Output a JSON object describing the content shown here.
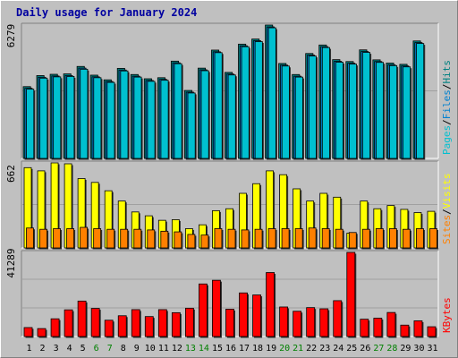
{
  "title": "Daily usage for January 2024",
  "colors": {
    "background": "#c0c0c0",
    "plot_bg": "#c0c0c0",
    "grid": "#a0a0a0",
    "pages": "#00c0d0",
    "files": "#0080d0",
    "hits": "#008080",
    "visits": "#ffff00",
    "sites": "#ff8000",
    "kbytes": "#ff0000",
    "weekday_label": "#000000",
    "weekend_label": "#008000"
  },
  "chart_data": [
    {
      "type": "bar",
      "panel": "hits_files_pages",
      "max_label": "6279",
      "legend": [
        "Pages",
        "/",
        "Files",
        "/",
        "Hits"
      ],
      "categories": [
        "1",
        "2",
        "3",
        "4",
        "5",
        "6",
        "7",
        "8",
        "9",
        "10",
        "11",
        "12",
        "13",
        "14",
        "15",
        "16",
        "17",
        "18",
        "19",
        "20",
        "21",
        "22",
        "23",
        "24",
        "25",
        "26",
        "27",
        "28",
        "29",
        "30",
        "31"
      ],
      "weekend_days": [
        6,
        7,
        13,
        14,
        20,
        21,
        27,
        28
      ],
      "ylim": [
        0,
        6279
      ],
      "series": [
        {
          "name": "Hits",
          "values": [
            3380,
            3900,
            3960,
            3980,
            4330,
            3920,
            3700,
            4240,
            3950,
            3750,
            3800,
            4580,
            3200,
            4250,
            5100,
            4050,
            5380,
            5620,
            6279,
            4470,
            3950,
            4940,
            5340,
            4650,
            4560,
            5110,
            4640,
            4490,
            4430,
            5530,
            0
          ]
        },
        {
          "name": "Files",
          "values": [
            3300,
            3820,
            3880,
            3900,
            4250,
            3840,
            3620,
            4160,
            3870,
            3670,
            3720,
            4500,
            3120,
            4170,
            5020,
            3970,
            5300,
            5540,
            6190,
            4390,
            3870,
            4860,
            5260,
            4570,
            4480,
            5030,
            4560,
            4410,
            4350,
            5450,
            0
          ]
        },
        {
          "name": "Pages",
          "values": [
            3260,
            3780,
            3840,
            3860,
            4200,
            3800,
            3580,
            4120,
            3830,
            3630,
            3680,
            4460,
            3080,
            4130,
            4980,
            3930,
            5260,
            5500,
            6150,
            4350,
            3830,
            4820,
            5220,
            4530,
            4440,
            4990,
            4520,
            4370,
            4310,
            5410,
            0
          ]
        }
      ]
    },
    {
      "type": "bar",
      "panel": "visits_sites",
      "max_label": "662",
      "legend": [
        "Sites",
        "/",
        "Visits"
      ],
      "categories": [
        "1",
        "2",
        "3",
        "4",
        "5",
        "6",
        "7",
        "8",
        "9",
        "10",
        "11",
        "12",
        "13",
        "14",
        "15",
        "16",
        "17",
        "18",
        "19",
        "20",
        "21",
        "22",
        "23",
        "24",
        "25",
        "26",
        "27",
        "28",
        "29",
        "30",
        "31"
      ],
      "ylim": [
        0,
        662
      ],
      "series": [
        {
          "name": "Visits",
          "values": [
            625,
            600,
            662,
            655,
            540,
            510,
            445,
            365,
            280,
            250,
            215,
            220,
            150,
            180,
            290,
            305,
            425,
            500,
            600,
            570,
            460,
            365,
            425,
            395,
            115,
            365,
            305,
            330,
            300,
            275,
            285
          ]
        },
        {
          "name": "Sites",
          "values": [
            155,
            145,
            150,
            150,
            160,
            150,
            145,
            145,
            145,
            140,
            130,
            125,
            105,
            100,
            150,
            145,
            140,
            145,
            150,
            150,
            150,
            155,
            150,
            145,
            120,
            145,
            150,
            150,
            145,
            150,
            150
          ]
        }
      ]
    },
    {
      "type": "bar",
      "panel": "kbytes",
      "max_label": "41289",
      "legend": [
        "KBytes"
      ],
      "categories": [
        "1",
        "2",
        "3",
        "4",
        "5",
        "6",
        "7",
        "8",
        "9",
        "10",
        "11",
        "12",
        "13",
        "14",
        "15",
        "16",
        "17",
        "18",
        "19",
        "20",
        "21",
        "22",
        "23",
        "24",
        "25",
        "26",
        "27",
        "28",
        "29",
        "30",
        "31"
      ],
      "ylim": [
        0,
        41289
      ],
      "series": [
        {
          "name": "KBytes",
          "values": [
            4400,
            3900,
            8700,
            13100,
            17400,
            13800,
            8000,
            10200,
            13200,
            9800,
            13200,
            11700,
            13900,
            25800,
            27600,
            13400,
            21400,
            20400,
            31400,
            14500,
            12400,
            14200,
            13600,
            17600,
            41289,
            8500,
            9000,
            11800,
            5600,
            7700,
            4800
          ]
        }
      ]
    }
  ]
}
